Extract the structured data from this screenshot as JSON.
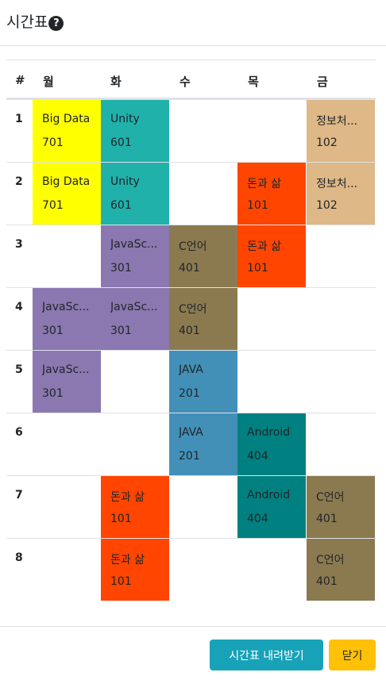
{
  "modal": {
    "title": "시간표",
    "help_icon": "question-circle-icon"
  },
  "table": {
    "headers": [
      "#",
      "월",
      "화",
      "수",
      "목",
      "금"
    ],
    "rows": [
      {
        "num": "1",
        "cells": [
          {
            "day": 0,
            "name": "Big Data",
            "room": "701",
            "color": "#ffff00"
          },
          {
            "day": 1,
            "name": "Unity",
            "room": "601",
            "color": "#20b2aa"
          },
          {
            "day": 4,
            "name": "정보처...",
            "room": "102",
            "color": "#deb887"
          }
        ]
      },
      {
        "num": "2",
        "cells": [
          {
            "day": 0,
            "name": "Big Data",
            "room": "701",
            "color": "#ffff00"
          },
          {
            "day": 1,
            "name": "Unity",
            "room": "601",
            "color": "#20b2aa"
          },
          {
            "day": 3,
            "name": "돈과 삶",
            "room": "101",
            "color": "#ff4500"
          },
          {
            "day": 4,
            "name": "정보처...",
            "room": "102",
            "color": "#deb887"
          }
        ]
      },
      {
        "num": "3",
        "cells": [
          {
            "day": 1,
            "name": "JavaSc...",
            "room": "301",
            "color": "#8b78b0"
          },
          {
            "day": 2,
            "name": "C언어",
            "room": "401",
            "color": "#8b7a50"
          },
          {
            "day": 3,
            "name": "돈과 삶",
            "room": "101",
            "color": "#ff4500"
          }
        ]
      },
      {
        "num": "4",
        "cells": [
          {
            "day": 0,
            "name": "JavaSc...",
            "room": "301",
            "color": "#8b78b0"
          },
          {
            "day": 1,
            "name": "JavaSc...",
            "room": "301",
            "color": "#8b78b0"
          },
          {
            "day": 2,
            "name": "C언어",
            "room": "401",
            "color": "#8b7a50"
          }
        ]
      },
      {
        "num": "5",
        "cells": [
          {
            "day": 0,
            "name": "JavaSc...",
            "room": "301",
            "color": "#8b78b0"
          },
          {
            "day": 2,
            "name": "JAVA",
            "room": "201",
            "color": "#4290b8"
          }
        ]
      },
      {
        "num": "6",
        "cells": [
          {
            "day": 2,
            "name": "JAVA",
            "room": "201",
            "color": "#4290b8"
          },
          {
            "day": 3,
            "name": "Android",
            "room": "404",
            "color": "#008080"
          }
        ]
      },
      {
        "num": "7",
        "cells": [
          {
            "day": 1,
            "name": "돈과 삶",
            "room": "101",
            "color": "#ff4500"
          },
          {
            "day": 3,
            "name": "Android",
            "room": "404",
            "color": "#008080"
          },
          {
            "day": 4,
            "name": "C언어",
            "room": "401",
            "color": "#8b7a50"
          }
        ]
      },
      {
        "num": "8",
        "cells": [
          {
            "day": 1,
            "name": "돈과 삶",
            "room": "101",
            "color": "#ff4500"
          },
          {
            "day": 4,
            "name": "C언어",
            "room": "401",
            "color": "#8b7a50"
          }
        ]
      }
    ]
  },
  "footer": {
    "download_label": "시간표 내려받기",
    "close_label": "닫기"
  }
}
